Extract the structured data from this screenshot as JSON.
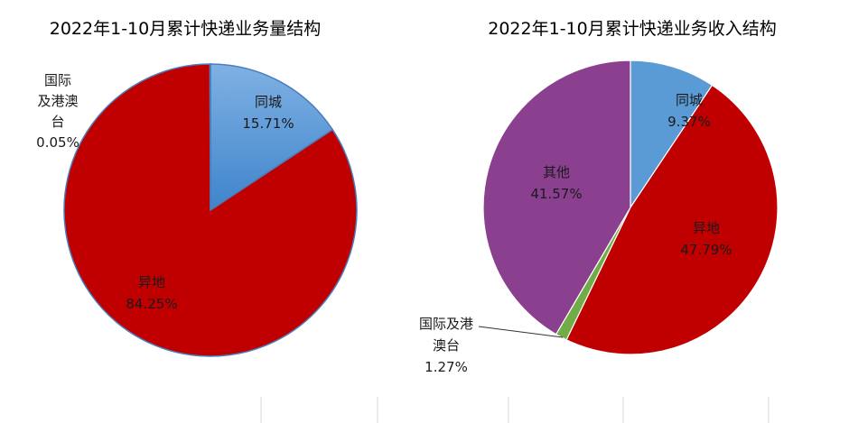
{
  "chart_data": [
    {
      "type": "pie",
      "title": "2022年1-10月累计快递业务量结构",
      "unit": "%",
      "slices": [
        {
          "name": "同城",
          "value": 15.71,
          "color": "#5b9bd5",
          "label_lines": [
            "同城"
          ],
          "pct_label": "15.71%"
        },
        {
          "name": "异地",
          "value": 84.25,
          "color": "#c00000",
          "label_lines": [
            "异地"
          ],
          "pct_label": "84.25%"
        },
        {
          "name": "国际及港澳台",
          "value": 0.05,
          "color": "#70ad47",
          "label_lines": [
            "国际",
            "及港澳",
            "台"
          ],
          "pct_label": "0.05%"
        }
      ]
    },
    {
      "type": "pie",
      "title": "2022年1-10月累计快递业务收入结构",
      "unit": "%",
      "slices": [
        {
          "name": "同城",
          "value": 9.37,
          "color": "#5b9bd5",
          "label_lines": [
            "同城"
          ],
          "pct_label": "9.37%"
        },
        {
          "name": "异地",
          "value": 47.79,
          "color": "#c00000",
          "label_lines": [
            "异地"
          ],
          "pct_label": "47.79%"
        },
        {
          "name": "国际及港澳台",
          "value": 1.27,
          "color": "#70ad47",
          "label_lines": [
            "国际及港",
            "澳台"
          ],
          "pct_label": "1.27%"
        },
        {
          "name": "其他",
          "value": 41.57,
          "color": "#8b3f8f",
          "label_lines": [
            "其他"
          ],
          "pct_label": "41.57%"
        }
      ]
    }
  ]
}
